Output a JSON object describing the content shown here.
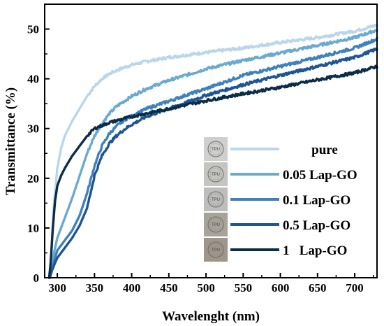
{
  "chart_data": {
    "type": "line",
    "xlabel": "Wavelenght (nm)",
    "ylabel": "Transmittance (%)",
    "xlim": [
      283,
      730
    ],
    "ylim": [
      0,
      55
    ],
    "xticks": [
      300,
      350,
      400,
      450,
      500,
      550,
      600,
      650,
      700
    ],
    "yticks": [
      0,
      10,
      20,
      30,
      40,
      50
    ],
    "grid": false,
    "legend_position": "bottom-right",
    "series": [
      {
        "name": "pure",
        "color": "#b9d7e9",
        "sample_label": "TPU",
        "sample_tone": "#cfcfcd",
        "x": [
          290,
          292,
          295,
          300,
          305,
          310,
          320,
          330,
          340,
          350,
          360,
          370,
          380,
          390,
          400,
          420,
          450,
          475,
          500,
          550,
          600,
          650,
          700,
          730
        ],
        "y": [
          0,
          5,
          14,
          22,
          26,
          28.5,
          31.5,
          34,
          36.5,
          38.5,
          40,
          41,
          41.7,
          42.3,
          42.8,
          43.5,
          44.3,
          44.8,
          45.3,
          46.2,
          47.3,
          48.3,
          49.6,
          50.8
        ]
      },
      {
        "name": "0.05 Lap-GO",
        "color": "#6aaad0",
        "sample_label": "TPU",
        "sample_tone": "#c4c4c1",
        "x": [
          290,
          293,
          297,
          300,
          305,
          310,
          320,
          330,
          340,
          350,
          360,
          370,
          380,
          390,
          400,
          420,
          450,
          475,
          500,
          550,
          600,
          650,
          700,
          730
        ],
        "y": [
          0,
          3,
          6,
          8,
          10,
          12,
          16,
          20.5,
          25,
          28.5,
          31,
          33,
          34.5,
          35.5,
          36.5,
          38,
          39.7,
          40.8,
          42,
          43.7,
          45.2,
          46.7,
          48.3,
          49.8
        ]
      },
      {
        "name": "0.1 Lap-GO",
        "color": "#3d81bd",
        "sample_label": "TPU",
        "sample_tone": "#bdbdbb",
        "x": [
          290,
          293,
          297,
          300,
          310,
          320,
          330,
          340,
          350,
          360,
          370,
          380,
          390,
          400,
          420,
          450,
          475,
          500,
          550,
          600,
          650,
          700,
          730
        ],
        "y": [
          0,
          2,
          4,
          5.5,
          7.5,
          9.5,
          12.5,
          17,
          22.5,
          26.5,
          29,
          30.5,
          31.7,
          32.5,
          34,
          35.5,
          36.8,
          38,
          40.7,
          42.5,
          44.3,
          46.2,
          48
        ]
      },
      {
        "name": "0.5 Lap-GO",
        "color": "#1f5593",
        "sample_label": "TPU",
        "sample_tone": "#a8a39a",
        "x": [
          290,
          293,
          297,
          300,
          310,
          320,
          330,
          340,
          350,
          360,
          370,
          380,
          390,
          400,
          420,
          450,
          475,
          500,
          550,
          600,
          650,
          700,
          730
        ],
        "y": [
          0,
          1.5,
          3,
          4,
          6,
          8,
          10.5,
          14,
          20.5,
          24.5,
          27,
          28.6,
          29.8,
          30.8,
          32.4,
          34,
          35.3,
          36.7,
          38.8,
          40.7,
          42.5,
          44.3,
          46
        ]
      },
      {
        "name": "1   Lap-GO",
        "color": "#0c2d4a",
        "sample_label": "TPU",
        "sample_tone": "#9f968a",
        "x": [
          289,
          291,
          294,
          297,
          300,
          305,
          310,
          320,
          330,
          340,
          350,
          370,
          400,
          450,
          500,
          550,
          600,
          650,
          700,
          730
        ],
        "y": [
          0,
          3,
          10,
          15.5,
          18.5,
          20.5,
          22,
          24.5,
          26.5,
          28.5,
          30,
          31.2,
          32.4,
          34,
          35.6,
          37,
          38.3,
          39.8,
          41.2,
          42.5
        ]
      }
    ]
  }
}
